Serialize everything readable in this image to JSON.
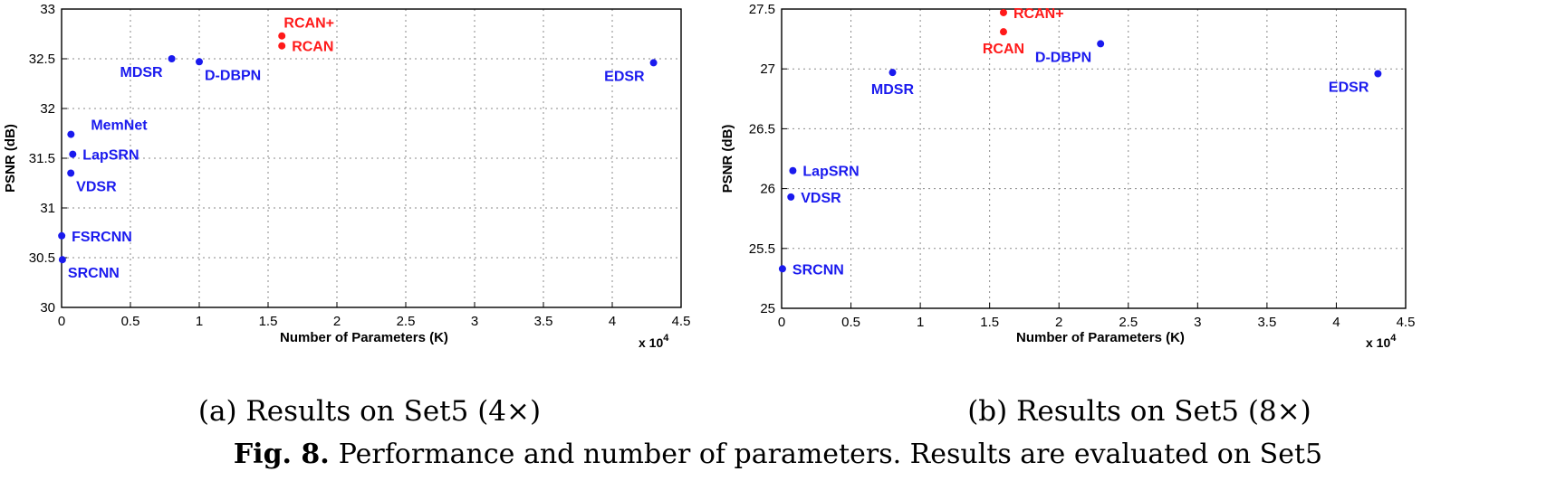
{
  "colors": {
    "red": "#ff1a1a",
    "blue": "#1a1aee"
  },
  "chart_data": [
    {
      "type": "scatter",
      "subcaption": "(a) Results on Set5 (4×)",
      "xlabel": "Number of Parameters (K)",
      "ylabel": "PSNR (dB)",
      "x_multiplier": "x 10",
      "x_multiplier_exp": "4",
      "xlim": [
        0,
        4.5
      ],
      "ylim": [
        30,
        33
      ],
      "xticks": [
        0,
        0.5,
        1,
        1.5,
        2,
        2.5,
        3,
        3.5,
        4,
        4.5
      ],
      "xtick_labels": [
        "0",
        "0.5",
        "1",
        "1.5",
        "2",
        "2.5",
        "3",
        "3.5",
        "4",
        "4.5"
      ],
      "yticks": [
        30,
        30.5,
        31,
        31.5,
        32,
        32.5,
        33
      ],
      "ytick_labels": [
        "30",
        "30.5",
        "31",
        "31.5",
        "32",
        "32.5",
        "33"
      ],
      "grid": true,
      "points": [
        {
          "label": "SRCNN",
          "x": 0.006,
          "y": 30.48,
          "color": "blue",
          "anchor": "below-right"
        },
        {
          "label": "FSRCNN",
          "x": 0.001,
          "y": 30.72,
          "color": "blue",
          "anchor": "right"
        },
        {
          "label": "VDSR",
          "x": 0.067,
          "y": 31.35,
          "color": "blue",
          "anchor": "below-right"
        },
        {
          "label": "LapSRN",
          "x": 0.081,
          "y": 31.54,
          "color": "blue",
          "anchor": "right"
        },
        {
          "label": "MemNet",
          "x": 0.068,
          "y": 31.74,
          "color": "blue",
          "anchor": "above-right"
        },
        {
          "label": "MDSR",
          "x": 0.8,
          "y": 32.5,
          "color": "blue",
          "anchor": "below-left"
        },
        {
          "label": "D-DBPN",
          "x": 1.0,
          "y": 32.47,
          "color": "blue",
          "anchor": "below-right"
        },
        {
          "label": "EDSR",
          "x": 4.3,
          "y": 32.46,
          "color": "blue",
          "anchor": "below-left"
        },
        {
          "label": "RCAN",
          "x": 1.6,
          "y": 32.63,
          "color": "red",
          "anchor": "right"
        },
        {
          "label": "RCAN+",
          "x": 1.6,
          "y": 32.73,
          "color": "red",
          "anchor": "above"
        }
      ]
    },
    {
      "type": "scatter",
      "subcaption": "(b) Results on Set5 (8×)",
      "xlabel": "Number of Parameters (K)",
      "ylabel": "PSNR (dB)",
      "x_multiplier": "x 10",
      "x_multiplier_exp": "4",
      "xlim": [
        0,
        4.5
      ],
      "ylim": [
        25,
        27.5
      ],
      "xticks": [
        0,
        0.5,
        1,
        1.5,
        2,
        2.5,
        3,
        3.5,
        4,
        4.5
      ],
      "xtick_labels": [
        "0",
        "0.5",
        "1",
        "1.5",
        "2",
        "2.5",
        "3",
        "3.5",
        "4",
        "4.5"
      ],
      "yticks": [
        25,
        25.5,
        26,
        26.5,
        27,
        27.5
      ],
      "ytick_labels": [
        "25",
        "25.5",
        "26",
        "26.5",
        "27",
        "27.5"
      ],
      "grid": true,
      "points": [
        {
          "label": "SRCNN",
          "x": 0.006,
          "y": 25.33,
          "color": "blue",
          "anchor": "right"
        },
        {
          "label": "VDSR",
          "x": 0.067,
          "y": 25.93,
          "color": "blue",
          "anchor": "right"
        },
        {
          "label": "LapSRN",
          "x": 0.081,
          "y": 26.15,
          "color": "blue",
          "anchor": "right"
        },
        {
          "label": "MDSR",
          "x": 0.8,
          "y": 26.97,
          "color": "blue",
          "anchor": "below"
        },
        {
          "label": "D-DBPN",
          "x": 2.3,
          "y": 27.21,
          "color": "blue",
          "anchor": "below-left"
        },
        {
          "label": "EDSR",
          "x": 4.3,
          "y": 26.96,
          "color": "blue",
          "anchor": "below-left"
        },
        {
          "label": "RCAN",
          "x": 1.6,
          "y": 27.31,
          "color": "red",
          "anchor": "below"
        },
        {
          "label": "RCAN+",
          "x": 1.6,
          "y": 27.47,
          "color": "red",
          "anchor": "right"
        }
      ]
    }
  ],
  "caption": {
    "prefix": "Fig. 8.",
    "text": "Performance and number of parameters. Results are evaluated on Set5"
  }
}
